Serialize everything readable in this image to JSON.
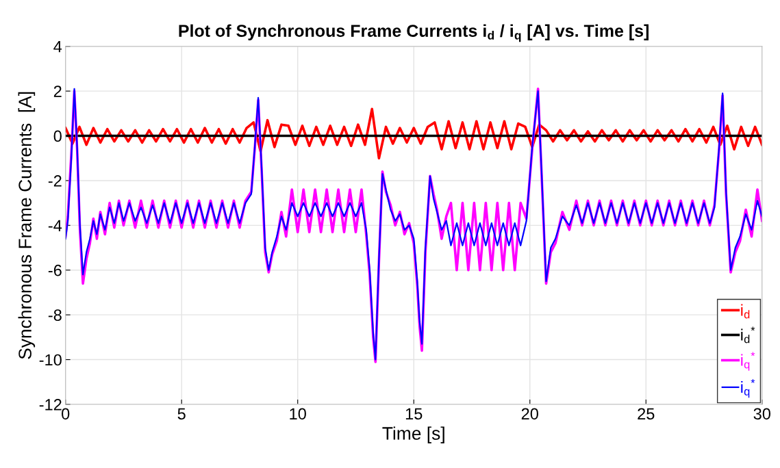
{
  "chart_data": {
    "type": "line",
    "title": "Plot of Synchronous Frame Currents i$_{d}$ / i$_{q}$ [A] vs. Time [s]",
    "xlabel": "Time [s]",
    "ylabel": "Synchronous Frame Currents  [A]",
    "xlim": [
      0,
      30
    ],
    "ylim": [
      -12,
      4
    ],
    "xticks": [
      0,
      5,
      10,
      15,
      20,
      25,
      30
    ],
    "yticks": [
      -12,
      -10,
      -8,
      -6,
      -4,
      -2,
      0,
      2,
      4
    ],
    "grid": true,
    "legend": "bottom right",
    "line_style": "solid",
    "marker": "none",
    "x": [
      0,
      0.1,
      0.25,
      0.38,
      0.5,
      0.62,
      0.75,
      0.9,
      1.05,
      1.2,
      1.35,
      1.5,
      1.7,
      1.9,
      2.1,
      2.3,
      2.5,
      2.75,
      3,
      3.25,
      3.5,
      3.75,
      4,
      4.25,
      4.5,
      4.75,
      5,
      5.25,
      5.5,
      5.75,
      6,
      6.25,
      6.5,
      6.75,
      7,
      7.25,
      7.5,
      7.75,
      8,
      8.15,
      8.3,
      8.45,
      8.6,
      8.75,
      8.9,
      9.1,
      9.3,
      9.5,
      9.75,
      10,
      10.25,
      10.5,
      10.75,
      11,
      11.25,
      11.5,
      11.75,
      12,
      12.25,
      12.5,
      12.75,
      12.95,
      13.1,
      13.25,
      13.35,
      13.5,
      13.65,
      13.8,
      14,
      14.2,
      14.4,
      14.6,
      14.8,
      15,
      15.15,
      15.25,
      15.35,
      15.5,
      15.7,
      15.85,
      16,
      16.2,
      16.4,
      16.6,
      16.85,
      17.1,
      17.35,
      17.6,
      17.85,
      18.1,
      18.35,
      18.6,
      18.85,
      19.1,
      19.35,
      19.6,
      19.85,
      20.1,
      20.35,
      20.5,
      20.7,
      20.9,
      21.1,
      21.4,
      21.7,
      22,
      22.25,
      22.5,
      22.75,
      23,
      23.25,
      23.5,
      23.75,
      24,
      24.25,
      24.5,
      24.75,
      25,
      25.25,
      25.5,
      25.75,
      26,
      26.25,
      26.5,
      26.75,
      27,
      27.25,
      27.5,
      27.75,
      27.95,
      28.15,
      28.3,
      28.45,
      28.65,
      28.85,
      29.05,
      29.3,
      29.55,
      29.8,
      30
    ],
    "series": [
      {
        "name": "i$_{d}$",
        "color": "#ff0000",
        "x": [
          0,
          0.3,
          0.6,
          0.9,
          1.2,
          1.5,
          1.8,
          2.1,
          2.4,
          2.7,
          3,
          3.3,
          3.6,
          3.9,
          4.2,
          4.5,
          4.8,
          5.1,
          5.4,
          5.7,
          6,
          6.3,
          6.6,
          6.9,
          7.2,
          7.5,
          7.8,
          8.1,
          8.4,
          8.7,
          9,
          9.3,
          9.6,
          9.9,
          10.2,
          10.5,
          10.8,
          11.1,
          11.4,
          11.7,
          12,
          12.3,
          12.6,
          12.9,
          13.2,
          13.5,
          13.8,
          14.1,
          14.4,
          14.7,
          15,
          15.3,
          15.6,
          15.9,
          16.2,
          16.5,
          16.8,
          17.1,
          17.4,
          17.7,
          18,
          18.3,
          18.6,
          18.9,
          19.2,
          19.5,
          19.8,
          20.1,
          20.4,
          20.7,
          21,
          21.3,
          21.6,
          21.9,
          22.2,
          22.5,
          22.8,
          23.1,
          23.4,
          23.7,
          24,
          24.3,
          24.6,
          24.9,
          25.2,
          25.5,
          25.8,
          26.1,
          26.4,
          26.7,
          27,
          27.3,
          27.6,
          27.9,
          28.2,
          28.5,
          28.8,
          29.1,
          29.4,
          29.7,
          30
        ],
        "values": [
          0.35,
          -0.35,
          0.4,
          -0.4,
          0.35,
          -0.3,
          0.3,
          -0.25,
          0.25,
          -0.25,
          0.25,
          -0.3,
          0.25,
          -0.25,
          0.3,
          -0.25,
          0.3,
          -0.3,
          0.3,
          -0.3,
          0.35,
          -0.3,
          0.3,
          -0.35,
          0.3,
          -0.3,
          0.35,
          0.6,
          -0.7,
          0.7,
          -0.5,
          0.5,
          0.45,
          -0.4,
          0.45,
          -0.45,
          0.4,
          -0.4,
          0.45,
          -0.4,
          0.4,
          -0.45,
          0.5,
          -0.4,
          1.2,
          -1.0,
          0.4,
          -0.35,
          0.35,
          -0.3,
          0.35,
          -0.35,
          0.4,
          0.6,
          -0.6,
          0.65,
          -0.55,
          0.6,
          -0.6,
          0.65,
          -0.6,
          0.6,
          -0.55,
          0.65,
          -0.6,
          0.55,
          0.4,
          -0.5,
          0.5,
          0.25,
          -0.25,
          0.25,
          -0.2,
          0.25,
          -0.25,
          0.2,
          -0.25,
          0.25,
          -0.2,
          0.25,
          -0.25,
          0.25,
          -0.2,
          0.25,
          -0.25,
          0.25,
          -0.2,
          0.25,
          -0.25,
          0.3,
          -0.25,
          0.3,
          -0.3,
          0.4,
          -0.4,
          0.45,
          -0.6,
          0.4,
          -0.45,
          0.4,
          -0.4
        ]
      },
      {
        "name": "i$_{d}$$^{*}$",
        "color": "#000000",
        "x": [
          0,
          30
        ],
        "values": [
          0,
          0
        ]
      },
      {
        "name": "i$_{q}$$^{*}$",
        "color": "#ff00ff",
        "values": [
          -4.5,
          -3.6,
          -0.8,
          2.0,
          -0.6,
          -4.2,
          -6.6,
          -5.5,
          -4.8,
          -3.7,
          -4.6,
          -3.4,
          -4.4,
          -3.0,
          -4.1,
          -2.9,
          -4.0,
          -2.9,
          -4.1,
          -2.9,
          -4.1,
          -2.9,
          -4.1,
          -2.9,
          -4.1,
          -2.9,
          -4.1,
          -2.9,
          -4.1,
          -2.9,
          -4.1,
          -2.9,
          -4.1,
          -2.9,
          -4.1,
          -2.9,
          -4.1,
          -2.9,
          -2.5,
          -0.6,
          1.6,
          -1.6,
          -5.2,
          -6.1,
          -5.3,
          -4.7,
          -3.4,
          -4.5,
          -2.4,
          -4.3,
          -2.4,
          -4.3,
          -2.4,
          -4.3,
          -2.4,
          -4.3,
          -2.4,
          -4.3,
          -2.4,
          -4.3,
          -2.4,
          -4.4,
          -6.2,
          -9.0,
          -10.1,
          -5.6,
          -1.6,
          -2.5,
          -3.1,
          -4.0,
          -3.4,
          -4.4,
          -3.9,
          -4.8,
          -6.7,
          -8.5,
          -9.6,
          -5.2,
          -1.8,
          -2.6,
          -3.3,
          -4.6,
          -3.6,
          -3.0,
          -6.0,
          -3.0,
          -6.0,
          -3.0,
          -6.0,
          -3.0,
          -6.0,
          -3.0,
          -6.0,
          -3.0,
          -6.0,
          -3.0,
          -3.7,
          -0.6,
          2.1,
          -1.6,
          -6.6,
          -5.2,
          -4.8,
          -3.4,
          -4.2,
          -2.9,
          -4.0,
          -2.9,
          -4.0,
          -2.9,
          -4.0,
          -2.9,
          -4.0,
          -2.9,
          -4.0,
          -2.9,
          -4.0,
          -2.9,
          -4.0,
          -2.9,
          -4.0,
          -2.9,
          -4.0,
          -2.9,
          -4.0,
          -2.9,
          -4.0,
          -2.9,
          -4.0,
          -3.1,
          -0.6,
          1.8,
          -2.6,
          -6.1,
          -5.2,
          -4.7,
          -3.3,
          -4.5,
          -2.4,
          -3.8
        ]
      },
      {
        "name": "i$_{q}$$^{*}$",
        "color": "#0000ff",
        "values": [
          -4.6,
          -3.8,
          -1.0,
          2.1,
          -0.5,
          -4.0,
          -6.2,
          -5.2,
          -4.6,
          -3.8,
          -4.4,
          -3.5,
          -4.2,
          -3.2,
          -3.9,
          -3.0,
          -3.8,
          -3.0,
          -3.8,
          -3.2,
          -3.9,
          -3.1,
          -3.9,
          -3.0,
          -3.9,
          -3.0,
          -3.9,
          -3.0,
          -3.9,
          -3.0,
          -3.9,
          -3.0,
          -3.9,
          -3.0,
          -3.9,
          -3.0,
          -3.9,
          -3.0,
          -2.6,
          -0.5,
          1.7,
          -1.5,
          -5.0,
          -6.0,
          -5.2,
          -4.5,
          -3.6,
          -4.2,
          -3.0,
          -3.6,
          -3.0,
          -3.6,
          -3.0,
          -3.6,
          -3.0,
          -3.6,
          -3.0,
          -3.6,
          -3.0,
          -3.6,
          -3.0,
          -4.2,
          -6.0,
          -8.8,
          -10.0,
          -5.5,
          -1.7,
          -2.4,
          -3.3,
          -3.8,
          -3.5,
          -4.2,
          -4.0,
          -4.6,
          -6.5,
          -8.3,
          -9.3,
          -5.0,
          -1.8,
          -2.8,
          -3.4,
          -4.2,
          -3.8,
          -4.9,
          -3.9,
          -4.9,
          -3.9,
          -4.9,
          -3.9,
          -4.9,
          -3.9,
          -4.9,
          -3.9,
          -4.9,
          -3.9,
          -4.9,
          -3.8,
          -0.5,
          2.0,
          -1.5,
          -6.5,
          -5.0,
          -4.6,
          -3.6,
          -4.0,
          -3.1,
          -3.9,
          -3.0,
          -3.9,
          -3.0,
          -3.9,
          -3.0,
          -3.9,
          -3.0,
          -3.9,
          -3.0,
          -3.9,
          -3.0,
          -3.9,
          -3.0,
          -3.9,
          -3.0,
          -3.9,
          -3.0,
          -3.9,
          -3.0,
          -3.9,
          -3.0,
          -3.9,
          -3.2,
          -0.5,
          1.9,
          -2.5,
          -6.0,
          -5.0,
          -4.5,
          -3.5,
          -4.2,
          -2.9,
          -3.6
        ]
      }
    ]
  }
}
